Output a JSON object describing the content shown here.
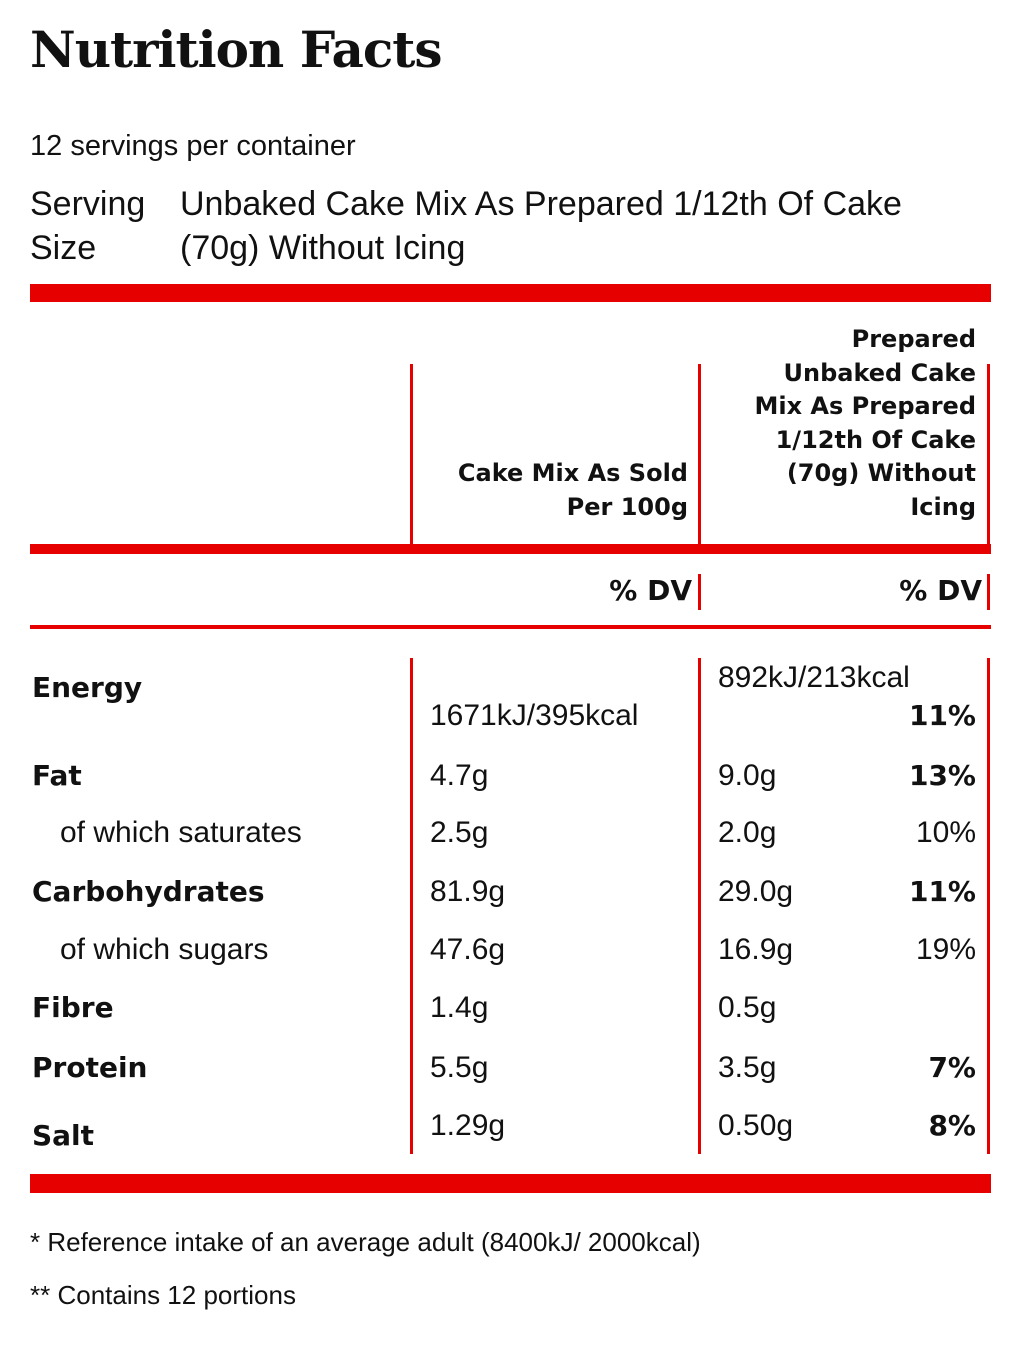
{
  "title": "Nutrition Facts",
  "servings_per_container": "12 servings per container",
  "serving_size": {
    "label": "Serving Size",
    "value": "Unbaked Cake Mix As Prepared 1/12th Of Cake (70g) Without Icing"
  },
  "columns": {
    "col1": [
      "Cake Mix As Sold",
      "Per 100g"
    ],
    "col2": [
      "Prepared",
      "Unbaked Cake",
      "Mix As Prepared",
      "1/12th Of Cake",
      "(70g) Without",
      "Icing"
    ]
  },
  "dv_header": {
    "col1": "% DV",
    "col2": "% DV"
  },
  "rows": [
    {
      "label": "Energy",
      "col1": "1671kJ/395kcal",
      "col2": "892kJ/213kcal",
      "pct": "11%"
    },
    {
      "label": "Fat",
      "col1": "4.7g",
      "col2": "9.0g",
      "pct": "13%"
    },
    {
      "label": "of which saturates",
      "col1": "2.5g",
      "col2": "2.0g",
      "pct": "10%"
    },
    {
      "label": "Carbohydrates",
      "col1": "81.9g",
      "col2": "29.0g",
      "pct": "11%"
    },
    {
      "label": "of which sugars",
      "col1": "47.6g",
      "col2": "16.9g",
      "pct": "19%"
    },
    {
      "label": "Fibre",
      "col1": "1.4g",
      "col2": "0.5g",
      "pct": ""
    },
    {
      "label": "Protein",
      "col1": "5.5g",
      "col2": "3.5g",
      "pct": "7%"
    },
    {
      "label": "Salt",
      "col1": "1.29g",
      "col2": "0.50g",
      "pct": "8%"
    }
  ],
  "footnotes": [
    "* Reference intake of an average adult (8400kJ/ 2000kcal)",
    "** Contains 12 portions"
  ],
  "colors": {
    "accent": "#e60000",
    "text": "#111111"
  }
}
